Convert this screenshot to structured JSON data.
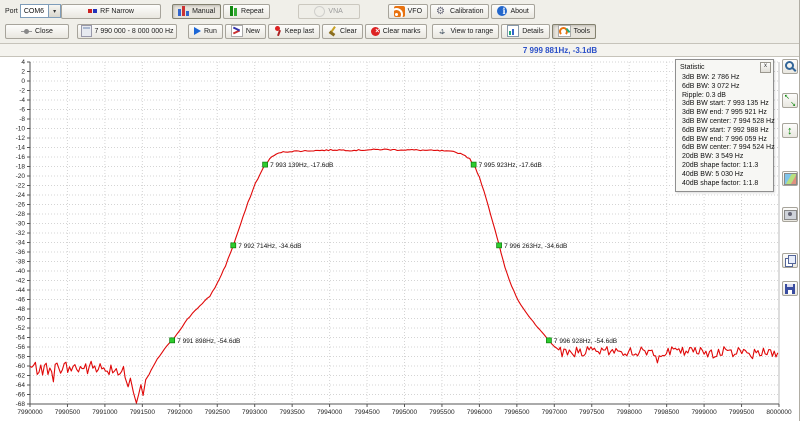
{
  "toolbar": {
    "port_label": "Port",
    "port_value": "COM6",
    "row1": [
      {
        "name": "rf-narrow-button",
        "label": "RF Narrow",
        "icon": "rf-icon"
      },
      {
        "name": "manual-button",
        "label": "Manual",
        "icon": "manual-icon",
        "checked": true
      },
      {
        "name": "repeat-button",
        "label": "Repeat",
        "icon": "repeat-icon"
      },
      {
        "name": "vna-button",
        "label": "VNA",
        "icon": "vna-icon",
        "disabled": true
      },
      {
        "name": "vfo-button",
        "label": "VFO",
        "icon": "vfo-icon"
      },
      {
        "name": "calibration-button",
        "label": "Calibration",
        "icon": "calibration-icon"
      },
      {
        "name": "about-button",
        "label": "About",
        "icon": "about-icon"
      }
    ],
    "row2": [
      {
        "name": "close-button",
        "label": "Close",
        "icon": "close-icon"
      },
      {
        "name": "freq-range-button",
        "label": "7 990 000 - 8 000 000 Hz",
        "icon": "freq-icon"
      },
      {
        "name": "run-button",
        "label": "Run",
        "icon": "run-icon"
      },
      {
        "name": "new-button",
        "label": "New",
        "icon": "new-icon"
      },
      {
        "name": "keep-last-button",
        "label": "Keep last",
        "icon": "keep-last-icon"
      },
      {
        "name": "clear-button",
        "label": "Clear",
        "icon": "clear-icon"
      },
      {
        "name": "clear-marks-button",
        "label": "Clear marks",
        "icon": "clear-marks-icon"
      },
      {
        "name": "view-to-range-button",
        "label": "View to range",
        "icon": "view-range-icon"
      },
      {
        "name": "details-button",
        "label": "Details",
        "icon": "details-icon"
      },
      {
        "name": "tools-button",
        "label": "Tools",
        "icon": "tools-icon",
        "checked": true
      }
    ]
  },
  "status": {
    "readout": "7 999 881Hz, -3.1dB"
  },
  "stat_panel": {
    "title": "Statistic",
    "close": "x",
    "lines": [
      "3dB BW: 2 786 Hz",
      "6dB BW: 3 072 Hz",
      "Ripple: 0.3 dB",
      "3dB BW start: 7 993 135 Hz",
      "3dB BW end: 7 995 921 Hz",
      "3dB BW center: 7 994 528 Hz",
      "6dB BW start: 7 992 988 Hz",
      "6dB BW end: 7 996 059 Hz",
      "6dB BW center: 7 994 524 Hz",
      "20dB BW: 3 549 Hz",
      "20dB shape factor: 1:1.3",
      "40dB BW: 5 030 Hz",
      "40dB shape factor: 1:1.8"
    ]
  },
  "side_toolbar": [
    {
      "name": "zoom-cursor-button",
      "icon": "zoom-icon"
    },
    {
      "name": "fit-horizontal-button",
      "icon": "fit-all-icon"
    },
    {
      "name": "fit-vertical-button",
      "icon": "fit-vert-icon"
    },
    {
      "name": "graph-image-button",
      "icon": "graph-image-icon"
    },
    {
      "name": "screenshot-button",
      "icon": "screenshot-icon"
    },
    {
      "name": "copy-button",
      "icon": "copy-icon"
    },
    {
      "name": "save-image-button",
      "icon": "save-icon"
    }
  ],
  "chart_data": {
    "type": "line",
    "title": "",
    "xlabel": "",
    "ylabel": "",
    "x_min": 7990000,
    "x_max": 8000000,
    "x_step": 500,
    "y_min": -68,
    "y_max": 4,
    "y_step": 2,
    "grid": true,
    "colors": {
      "curve": "#e00808",
      "marker": "#2ecc2e",
      "marker_border": "#0a7a0a",
      "grid": "#d4d4d4",
      "axis": "#555555",
      "accent_blue": "#2b50c8"
    },
    "series": [
      {
        "name": "sweep-trace",
        "noise_segments": [
          {
            "from": 7990000,
            "to": 7991260,
            "step": 24,
            "base": -60.4,
            "amp": 1.6
          },
          {
            "from": 7997080,
            "to": 8000000,
            "step": 24,
            "base": -57.0,
            "amp": 1.1
          }
        ],
        "key_points": [
          [
            7991270,
            -62.5
          ],
          [
            7991310,
            -64.5
          ],
          [
            7991340,
            -62.5
          ],
          [
            7991380,
            -65.5
          ],
          [
            7991420,
            -67.8
          ],
          [
            7991450,
            -66.0
          ],
          [
            7991480,
            -64.0
          ],
          [
            7991510,
            -66.2
          ],
          [
            7991545,
            -63.0
          ],
          [
            7991590,
            -61.8
          ],
          [
            7991640,
            -60.2
          ],
          [
            7991700,
            -58.6
          ],
          [
            7991760,
            -57.2
          ],
          [
            7991830,
            -55.8
          ],
          [
            7991898,
            -54.6
          ],
          [
            7992000,
            -52.4
          ],
          [
            7992100,
            -50.2
          ],
          [
            7992200,
            -48.3
          ],
          [
            7992300,
            -46.9
          ],
          [
            7992400,
            -45.3
          ],
          [
            7992500,
            -42.6
          ],
          [
            7992610,
            -38.9
          ],
          [
            7992714,
            -34.6
          ],
          [
            7992810,
            -30.2
          ],
          [
            7992910,
            -25.6
          ],
          [
            7993010,
            -21.5
          ],
          [
            7993139,
            -17.6
          ],
          [
            7993230,
            -15.9
          ],
          [
            7993350,
            -15.0
          ],
          [
            7993500,
            -14.8
          ],
          [
            7993700,
            -14.7
          ],
          [
            7993900,
            -14.6
          ],
          [
            7994100,
            -14.5
          ],
          [
            7994300,
            -14.6
          ],
          [
            7994500,
            -14.5
          ],
          [
            7994700,
            -14.4
          ],
          [
            7994900,
            -14.5
          ],
          [
            7995100,
            -14.5
          ],
          [
            7995300,
            -14.6
          ],
          [
            7995500,
            -14.7
          ],
          [
            7995650,
            -14.9
          ],
          [
            7995780,
            -15.4
          ],
          [
            7995870,
            -16.4
          ],
          [
            7995923,
            -17.6
          ],
          [
            7996000,
            -20.2
          ],
          [
            7996090,
            -24.6
          ],
          [
            7996180,
            -29.8
          ],
          [
            7996263,
            -34.6
          ],
          [
            7996340,
            -39.2
          ],
          [
            7996430,
            -43.2
          ],
          [
            7996520,
            -46.2
          ],
          [
            7996620,
            -48.6
          ],
          [
            7996720,
            -50.8
          ],
          [
            7996830,
            -52.9
          ],
          [
            7996928,
            -54.6
          ],
          [
            7997000,
            -55.8
          ],
          [
            7997060,
            -56.6
          ]
        ]
      }
    ],
    "markers": [
      {
        "freq": 7993139,
        "db": -17.6,
        "label": "7 993 139Hz, -17.6dB"
      },
      {
        "freq": 7995923,
        "db": -17.6,
        "label": "7 995 923Hz, -17.6dB"
      },
      {
        "freq": 7992714,
        "db": -34.6,
        "label": "7 992 714Hz, -34.6dB"
      },
      {
        "freq": 7996263,
        "db": -34.6,
        "label": "7 996 263Hz, -34.6dB"
      },
      {
        "freq": 7991898,
        "db": -54.6,
        "label": "7 991 898Hz, -54.6dB"
      },
      {
        "freq": 7996928,
        "db": -54.6,
        "label": "7 996 928Hz, -54.6dB"
      }
    ]
  }
}
